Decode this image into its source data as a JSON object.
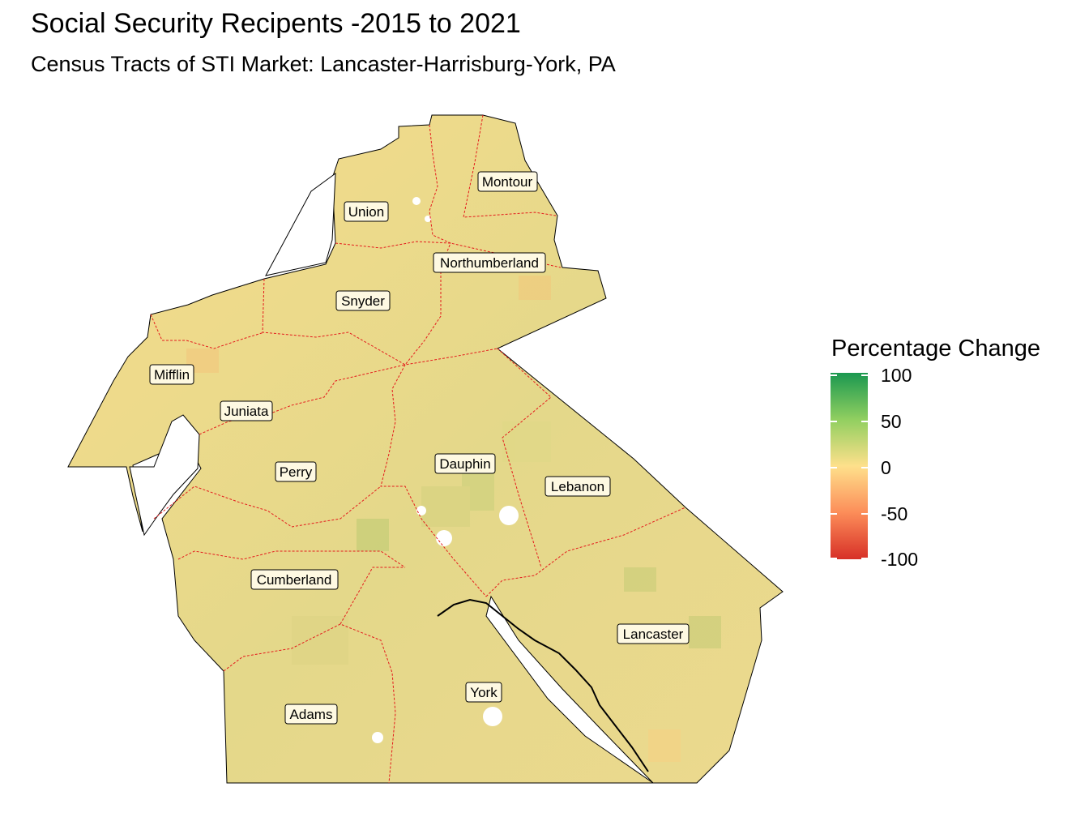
{
  "title": "Social Security Recipents -2015 to 2021",
  "subtitle": "Census Tracts of STI Market: Lancaster-Harrisburg-York, PA",
  "legend": {
    "title": "Percentage Change",
    "ticks": [
      "100",
      "50",
      "0",
      "-50",
      "-100"
    ],
    "colors": [
      "#1a9850",
      "#91cf60",
      "#fee08b",
      "#fc8d59",
      "#d73027"
    ]
  },
  "counties": [
    {
      "name": "Montour"
    },
    {
      "name": "Union"
    },
    {
      "name": "Northumberland"
    },
    {
      "name": "Snyder"
    },
    {
      "name": "Mifflin"
    },
    {
      "name": "Juniata"
    },
    {
      "name": "Perry"
    },
    {
      "name": "Dauphin"
    },
    {
      "name": "Lebanon"
    },
    {
      "name": "Cumberland"
    },
    {
      "name": "Lancaster"
    },
    {
      "name": "York"
    },
    {
      "name": "Adams"
    }
  ],
  "colors": {
    "base_fill": "#ecd98f",
    "county_border": "#e41a1c",
    "outline": "#000000"
  }
}
